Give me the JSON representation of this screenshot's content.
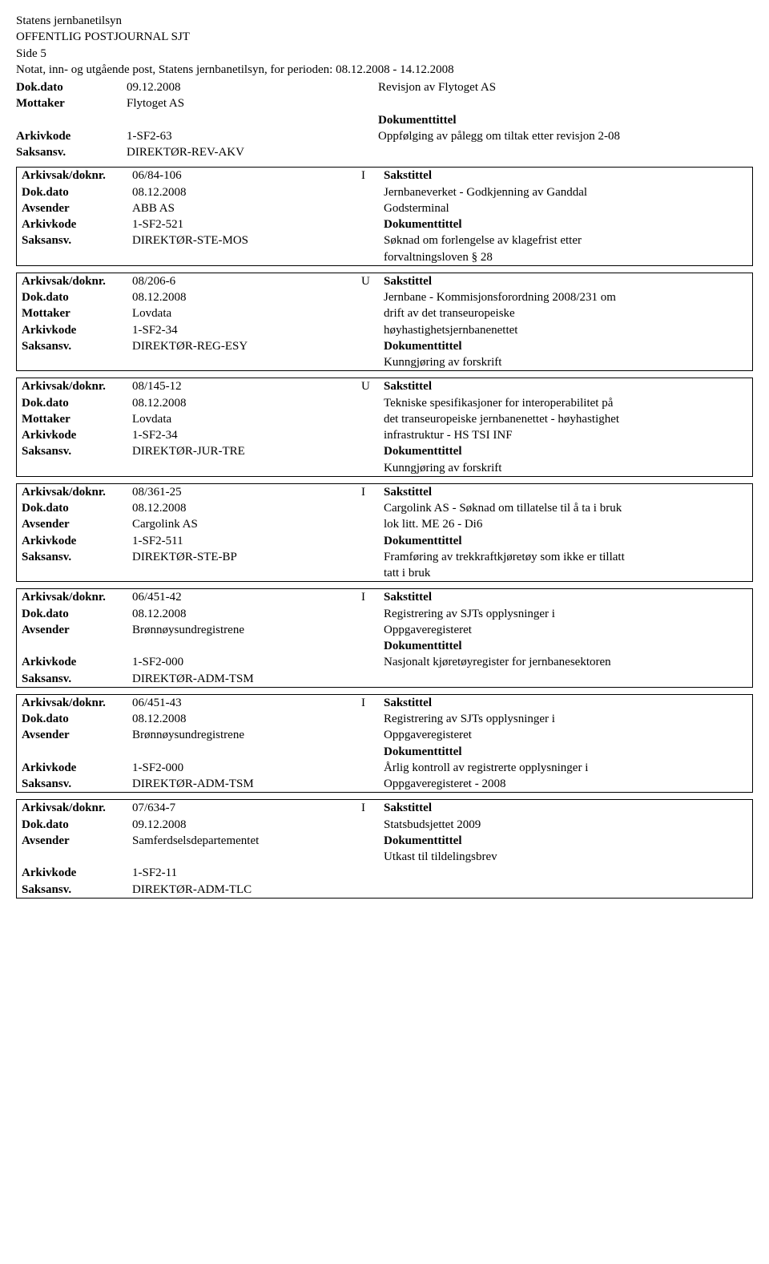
{
  "header": {
    "org": "Statens jernbanetilsyn",
    "title": "OFFENTLIG POSTJOURNAL SJT",
    "page": "Side 5",
    "subtitle": "Notat, inn- og utgående post, Statens jernbanetilsyn, for perioden: 08.12.2008 - 14.12.2008"
  },
  "labels": {
    "arkivsak": "Arkivsak/doknr.",
    "dokdato": "Dok.dato",
    "mottaker": "Mottaker",
    "avsender": "Avsender",
    "arkivkode": "Arkivkode",
    "saksansv": "Saksansv.",
    "sakstittel": "Sakstittel",
    "dokumenttittel": "Dokumenttittel"
  },
  "top": {
    "dokdato": "09.12.2008",
    "mottaker": "Flytoget AS",
    "arkivkode": "1-SF2-63",
    "saksansv": "DIREKTØR-REV-AKV",
    "sakstittel": "Revisjon av Flytoget AS",
    "doktittel": "Oppfølging av pålegg om tiltak etter revisjon 2-08"
  },
  "entries": [
    {
      "arkivsak": "06/84-106",
      "io": "I",
      "dokdato": "08.12.2008",
      "party_label": "Avsender",
      "party": "ABB AS",
      "arkivkode": "1-SF2-521",
      "saksansv": "DIREKTØR-STE-MOS",
      "sakstittel_lines": [
        "Jernbaneverket - Godkjenning av Ganddal",
        "Godsterminal"
      ],
      "doktittel_lines": [
        "Søknad om forlengelse av klagefrist etter",
        "forvaltningsloven § 28"
      ]
    },
    {
      "arkivsak": "08/206-6",
      "io": "U",
      "dokdato": "08.12.2008",
      "party_label": "Mottaker",
      "party": "Lovdata",
      "arkivkode": "1-SF2-34",
      "saksansv": "DIREKTØR-REG-ESY",
      "sakstittel_lines": [
        "Jernbane - Kommisjonsforordning 2008/231 om",
        "drift av det transeuropeiske",
        "høyhastighetsjernbanenettet"
      ],
      "doktittel_lines": [
        "Kunngjøring av forskrift"
      ],
      "trailing_blank": true
    },
    {
      "arkivsak": "08/145-12",
      "io": "U",
      "dokdato": "08.12.2008",
      "party_label": "Mottaker",
      "party": "Lovdata",
      "arkivkode": "1-SF2-34",
      "saksansv": "DIREKTØR-JUR-TRE",
      "sakstittel_lines": [
        "Tekniske spesifikasjoner for interoperabilitet på",
        "det transeuropeiske jernbanenettet - høyhastighet",
        "infrastruktur - HS TSI INF"
      ],
      "doktittel_lines": [
        "Kunngjøring av forskrift"
      ],
      "trailing_blank": true
    },
    {
      "arkivsak": "08/361-25",
      "io": "I",
      "dokdato": "08.12.2008",
      "party_label": "Avsender",
      "party": "Cargolink AS",
      "arkivkode": "1-SF2-511",
      "saksansv": "DIREKTØR-STE-BP",
      "sakstittel_lines": [
        "Cargolink AS - Søknad om tillatelse til å ta i bruk",
        "lok litt. ME 26 - Di6"
      ],
      "doktittel_lines": [
        "Framføring av trekkraftkjøretøy som ikke er tillatt",
        "tatt i bruk"
      ]
    },
    {
      "arkivsak": "06/451-42",
      "io": "I",
      "dokdato": "08.12.2008",
      "party_label": "Avsender",
      "party": "Brønnøysundregistrene",
      "arkivkode": "1-SF2-000",
      "saksansv": "DIREKTØR-ADM-TSM",
      "sakstittel_lines": [
        "Registrering av SJTs opplysninger i",
        "Oppgaveregisteret"
      ],
      "doktittel_lines": [
        "Nasjonalt kjøretøyregister for jernbanesektoren"
      ],
      "blank_before_arkivkode": true
    },
    {
      "arkivsak": "06/451-43",
      "io": "I",
      "dokdato": "08.12.2008",
      "party_label": "Avsender",
      "party": "Brønnøysundregistrene",
      "arkivkode": "1-SF2-000",
      "saksansv": "DIREKTØR-ADM-TSM",
      "sakstittel_lines": [
        "Registrering av SJTs opplysninger i",
        "Oppgaveregisteret"
      ],
      "doktittel_lines": [
        "Årlig kontroll av registrerte opplysninger i",
        "Oppgaveregisteret - 2008"
      ],
      "blank_before_arkivkode": true
    },
    {
      "arkivsak": "07/634-7",
      "io": "I",
      "dokdato": "09.12.2008",
      "party_label": "Avsender",
      "party": "Samferdselsdepartementet",
      "arkivkode": "1-SF2-11",
      "saksansv": "DIREKTØR-ADM-TLC",
      "sakstittel_lines": [
        "Statsbudsjettet 2009"
      ],
      "doktittel_lines": [
        "Utkast til tildelingsbrev"
      ],
      "blank_after_party": true,
      "blank_before_arkivkode": false
    }
  ]
}
